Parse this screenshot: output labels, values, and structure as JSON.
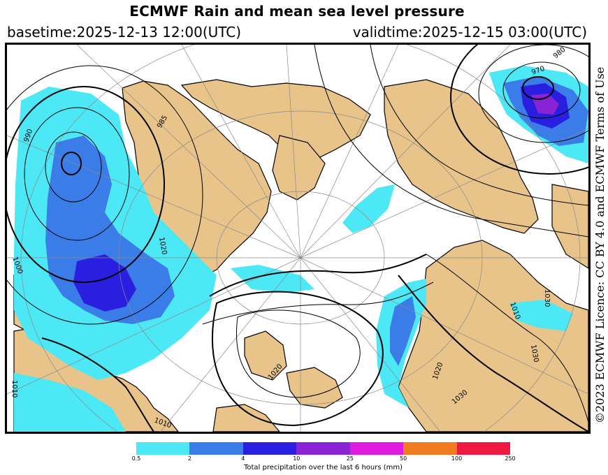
{
  "header": {
    "title": "ECMWF Rain and mean sea level pressure",
    "basetime": "basetime:2025-12-13 12:00(UTC)",
    "validtime": "validtime:2025-12-15 03:00(UTC)"
  },
  "licence": "©2023 ECMWF Licence: CC BY 4.0 and ECMWF Terms of Use",
  "colors": {
    "land": "#e8c48a",
    "sea": "#ffffff",
    "isobar": "#000000",
    "graticule": "#8a8a8a"
  },
  "isobar_labels": [
    "990",
    "985",
    "970",
    "980",
    "1000",
    "1010",
    "1020",
    "1030",
    "1030",
    "1020",
    "1010",
    "1030",
    "1020",
    "1010"
  ],
  "legend": {
    "label": "Total precipitation over the last 6 hours (mm)",
    "ticks": [
      "0.5",
      "2",
      "4",
      "10",
      "25",
      "50",
      "100",
      "250"
    ],
    "colors": [
      "#4de8f6",
      "#3b7de8",
      "#2a1fe0",
      "#8a22d6",
      "#e01be0",
      "#f07b20",
      "#f01840"
    ]
  }
}
